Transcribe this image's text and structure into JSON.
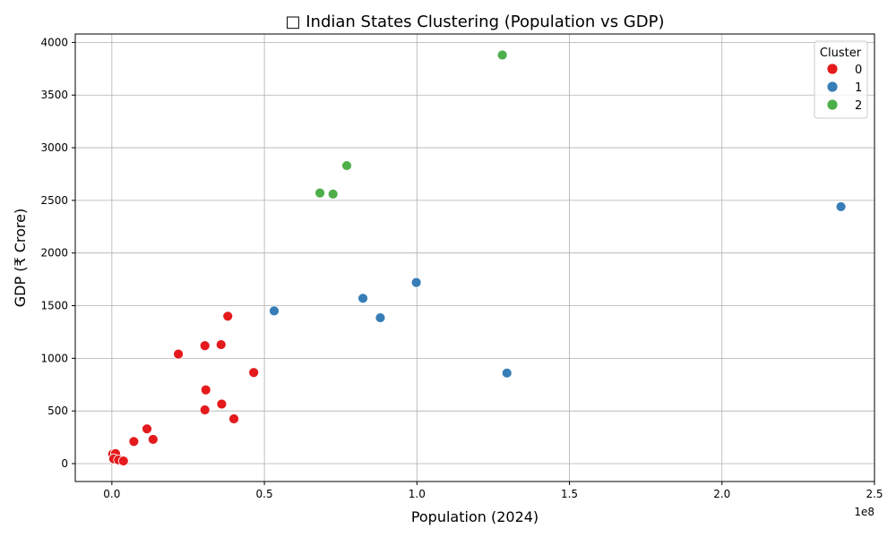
{
  "chart_data": {
    "type": "scatter",
    "title": "□ Indian States Clustering (Population vs GDP)",
    "xlabel": "Population (2024)",
    "ylabel": "GDP (₹ Crore)",
    "x_offset_label": "1e8",
    "xlim": [
      -0.12,
      2.5
    ],
    "ylim": [
      -170,
      4080
    ],
    "x_ticks": [
      0.0,
      0.5,
      1.0,
      1.5,
      2.0,
      2.5
    ],
    "x_tick_labels": [
      "0.0",
      "0.5",
      "1.0",
      "1.5",
      "2.0",
      "2.5"
    ],
    "y_ticks": [
      0,
      500,
      1000,
      1500,
      2000,
      2500,
      3000,
      3500,
      4000
    ],
    "y_tick_labels": [
      "0",
      "500",
      "1000",
      "1500",
      "2000",
      "2500",
      "3000",
      "3500",
      "4000"
    ],
    "grid": true,
    "legend": {
      "title": "Cluster",
      "position": "top-right"
    },
    "series": [
      {
        "name": "0",
        "color": "#e41a1c",
        "points": [
          [
            0.003,
            90
          ],
          [
            0.012,
            95
          ],
          [
            0.006,
            45
          ],
          [
            0.022,
            35
          ],
          [
            0.038,
            25
          ],
          [
            0.072,
            210
          ],
          [
            0.115,
            330
          ],
          [
            0.135,
            230
          ],
          [
            0.218,
            1040
          ],
          [
            0.305,
            1120
          ],
          [
            0.308,
            700
          ],
          [
            0.305,
            510
          ],
          [
            0.358,
            1130
          ],
          [
            0.36,
            565
          ],
          [
            0.38,
            1400
          ],
          [
            0.4,
            425
          ],
          [
            0.465,
            865
          ]
        ]
      },
      {
        "name": "1",
        "color": "#377eb8",
        "points": [
          [
            0.532,
            1450
          ],
          [
            0.823,
            1570
          ],
          [
            0.88,
            1385
          ],
          [
            0.998,
            1720
          ],
          [
            1.295,
            860
          ],
          [
            2.39,
            2440
          ]
        ]
      },
      {
        "name": "2",
        "color": "#4daf4a",
        "points": [
          [
            0.682,
            2570
          ],
          [
            0.725,
            2560
          ],
          [
            0.77,
            2830
          ],
          [
            1.28,
            3880
          ]
        ]
      }
    ]
  }
}
